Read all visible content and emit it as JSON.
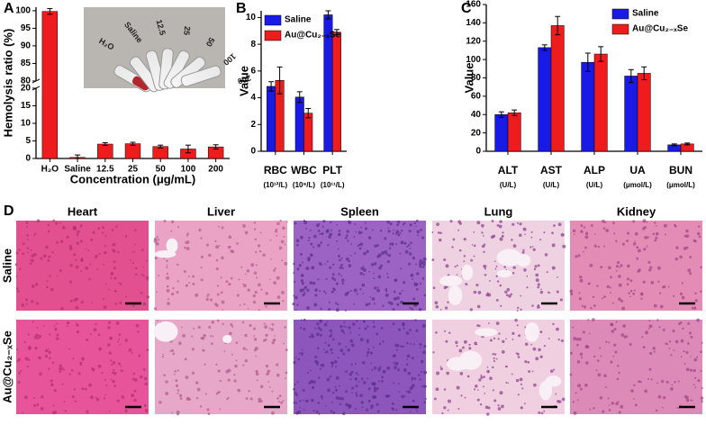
{
  "chart_data": [
    {
      "type": "bar",
      "panel": "A",
      "y_label": "Hemolysis ratio (%)",
      "x_label": "Concentration (μg/mL)",
      "categories": [
        "H₂O",
        "Saline",
        "12.5",
        "25",
        "50",
        "100",
        "200"
      ],
      "series": [
        {
          "color": "#ee1c1c",
          "values": [
            99.8,
            0.3,
            4.1,
            4.2,
            3.4,
            2.7,
            3.3
          ],
          "errors": [
            0.8,
            0.7,
            0.4,
            0.4,
            0.4,
            1.1,
            0.6
          ]
        }
      ],
      "ylim": [
        0,
        101
      ],
      "axis_break": [
        20,
        80
      ],
      "yticks": [
        0,
        5,
        10,
        15,
        20,
        80,
        85,
        90,
        95,
        100
      ],
      "inset_labels": [
        "H₂O",
        "Saline",
        "12.5",
        "25",
        "50",
        "100",
        "200"
      ]
    },
    {
      "type": "bar",
      "panel": "B",
      "y_label": "Value",
      "categories": [
        "RBC",
        "WBC",
        "PLT"
      ],
      "category_units": [
        "(10¹²/L)",
        "(10⁹/L)",
        "(10¹¹/L)"
      ],
      "series": [
        {
          "name": "Saline",
          "color": "#1a1ae6",
          "values": [
            4.85,
            4.05,
            10.2
          ],
          "errors": [
            0.35,
            0.4,
            0.3
          ]
        },
        {
          "name": "Au@Cu₂₋ₓSe",
          "color": "#ee1c1c",
          "values": [
            5.3,
            2.85,
            8.9
          ],
          "errors": [
            1.0,
            0.35,
            0.2
          ]
        }
      ],
      "ylim": [
        0,
        10.5
      ],
      "yticks": [
        0,
        2,
        4,
        6,
        8,
        10
      ],
      "legend": "upper left"
    },
    {
      "type": "bar",
      "panel": "C",
      "y_label": "Value",
      "categories": [
        "ALT",
        "AST",
        "ALP",
        "UA",
        "BUN"
      ],
      "category_units": [
        "(U/L)",
        "(U/L)",
        "(U/L)",
        "(μmol/L)",
        "(μmol/L)"
      ],
      "series": [
        {
          "name": "Saline",
          "color": "#1a1ae6",
          "values": [
            40,
            113,
            97,
            82,
            7
          ],
          "errors": [
            3,
            3,
            10,
            7,
            1
          ]
        },
        {
          "name": "Au@Cu₂₋ₓSe",
          "color": "#ee1c1c",
          "values": [
            42,
            137,
            106,
            85,
            8
          ],
          "errors": [
            3,
            10,
            8,
            7,
            1
          ]
        }
      ],
      "ylim": [
        0,
        160
      ],
      "yticks": [
        0,
        20,
        40,
        60,
        80,
        100,
        120,
        140,
        160
      ],
      "legend": "upper right"
    }
  ],
  "histology": {
    "panel": "D",
    "columns": [
      "Heart",
      "Liver",
      "Spleen",
      "Lung",
      "Kidney"
    ],
    "rows": [
      "Saline",
      "Au@Cu₂₋ₓSe"
    ]
  }
}
